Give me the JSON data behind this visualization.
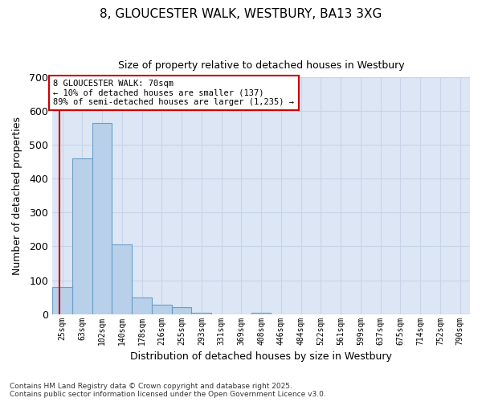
{
  "title": "8, GLOUCESTER WALK, WESTBURY, BA13 3XG",
  "subtitle": "Size of property relative to detached houses in Westbury",
  "xlabel": "Distribution of detached houses by size in Westbury",
  "ylabel": "Number of detached properties",
  "footnote1": "Contains HM Land Registry data © Crown copyright and database right 2025.",
  "footnote2": "Contains public sector information licensed under the Open Government Licence v3.0.",
  "bar_color": "#b8d0ea",
  "bar_edge_color": "#6a9fc8",
  "bg_color": "#dce6f5",
  "grid_color": "#c8d4e8",
  "annotation_box_color": "#cc0000",
  "vline_color": "#cc0000",
  "categories": [
    "25sqm",
    "63sqm",
    "102sqm",
    "140sqm",
    "178sqm",
    "216sqm",
    "255sqm",
    "293sqm",
    "331sqm",
    "369sqm",
    "408sqm",
    "446sqm",
    "484sqm",
    "522sqm",
    "561sqm",
    "599sqm",
    "637sqm",
    "675sqm",
    "714sqm",
    "752sqm",
    "790sqm"
  ],
  "values": [
    80,
    460,
    565,
    205,
    50,
    27,
    20,
    5,
    0,
    0,
    3,
    0,
    0,
    0,
    0,
    0,
    0,
    0,
    0,
    0,
    0
  ],
  "ylim": [
    0,
    700
  ],
  "yticks": [
    0,
    100,
    200,
    300,
    400,
    500,
    600,
    700
  ],
  "annotation_line1": "8 GLOUCESTER WALK: 70sqm",
  "annotation_line2": "← 10% of detached houses are smaller (137)",
  "annotation_line3": "89% of semi-detached houses are larger (1,235) →",
  "vline_x": -0.15,
  "figsize": [
    6.0,
    5.0
  ],
  "dpi": 100
}
